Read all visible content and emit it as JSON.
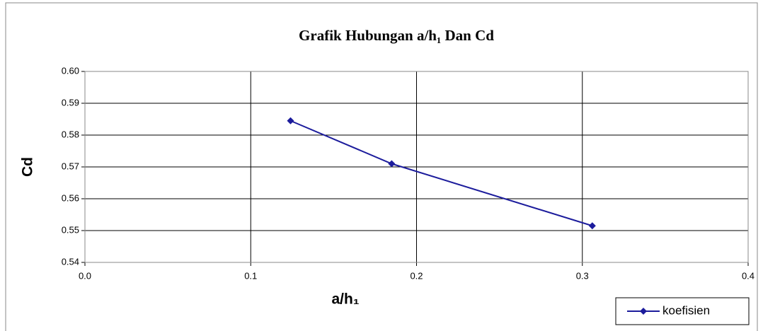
{
  "chart_data": {
    "type": "line",
    "title": "Grafik Hubungan a/h₁ Dan Cd",
    "xlabel": "a/h₁",
    "ylabel": "Cd",
    "x": [
      0.124,
      0.185,
      0.306
    ],
    "series": [
      {
        "name": "koefisien",
        "color": "#1c1c9c",
        "values": [
          0.5845,
          0.571,
          0.5515
        ]
      }
    ],
    "xlim": [
      0,
      0.4
    ],
    "xticks": [
      {
        "value": 0,
        "label": "0.0"
      },
      0.1,
      0.2,
      0.3,
      0.4
    ],
    "ylim": [
      0.54,
      0.6
    ],
    "yticks": [
      0.54,
      0.55,
      0.56,
      0.57,
      0.58,
      0.59,
      {
        "value": 0.6,
        "label": "0.60"
      }
    ],
    "grid": true,
    "legend": "lower right"
  }
}
